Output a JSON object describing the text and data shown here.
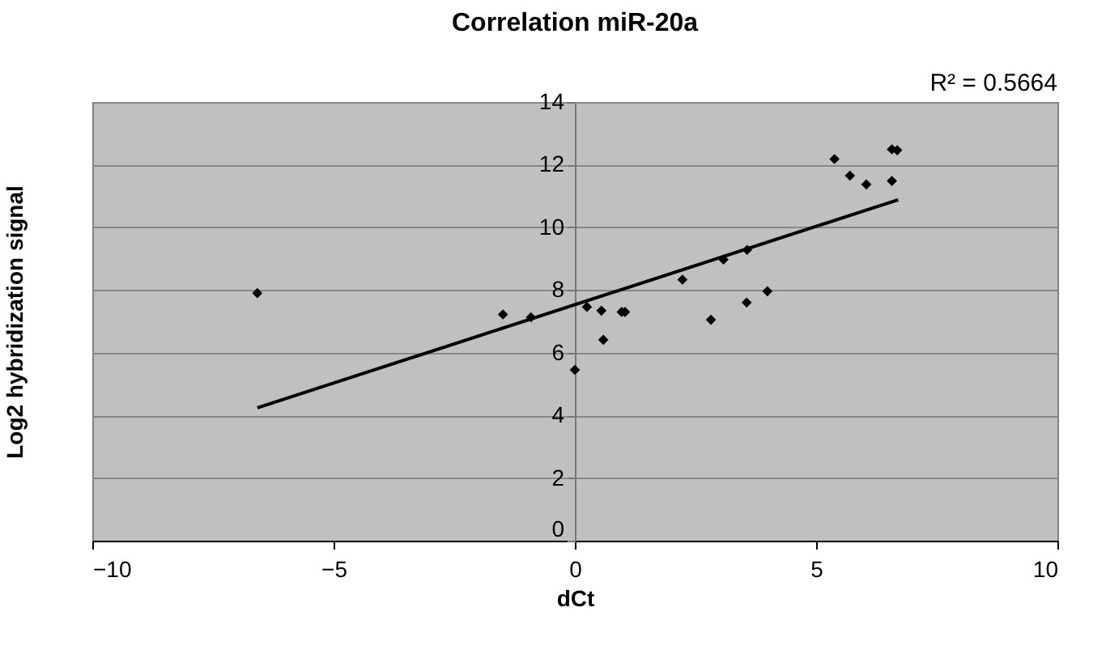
{
  "chart_data": {
    "type": "scatter",
    "title": "Correlation miR-20a",
    "xlabel": "dCt",
    "ylabel": "Log2 hybridization signal",
    "annotations": [
      "R² = 0.5664"
    ],
    "xlim": [
      -10,
      10
    ],
    "xticks": [
      -10,
      -5,
      0,
      5,
      10
    ],
    "ylim": [
      0,
      14
    ],
    "yticks": [
      0,
      2,
      4,
      6,
      8,
      10,
      12,
      14
    ],
    "grid": "y",
    "marker": "diamond",
    "series": [
      {
        "color": "#000000",
        "x": [
          -6.58,
          -1.49,
          -0.91,
          0.0,
          0.25,
          0.55,
          0.59,
          0.97,
          1.04,
          2.23,
          2.82,
          3.08,
          3.56,
          3.57,
          3.99,
          5.38,
          5.7,
          6.04,
          6.57,
          6.57,
          6.68
        ],
        "values": [
          7.9,
          7.22,
          7.13,
          5.45,
          7.46,
          7.34,
          6.41,
          7.3,
          7.3,
          8.33,
          7.05,
          8.97,
          7.6,
          9.28,
          7.96,
          12.18,
          11.65,
          11.37,
          11.48,
          12.49,
          12.46
        ]
      },
      {
        "type": "line",
        "color": "#000000",
        "line_style": "solid",
        "marker": "none",
        "x": [
          -6.58,
          6.7
        ],
        "values": [
          4.24,
          10.88
        ]
      }
    ]
  }
}
